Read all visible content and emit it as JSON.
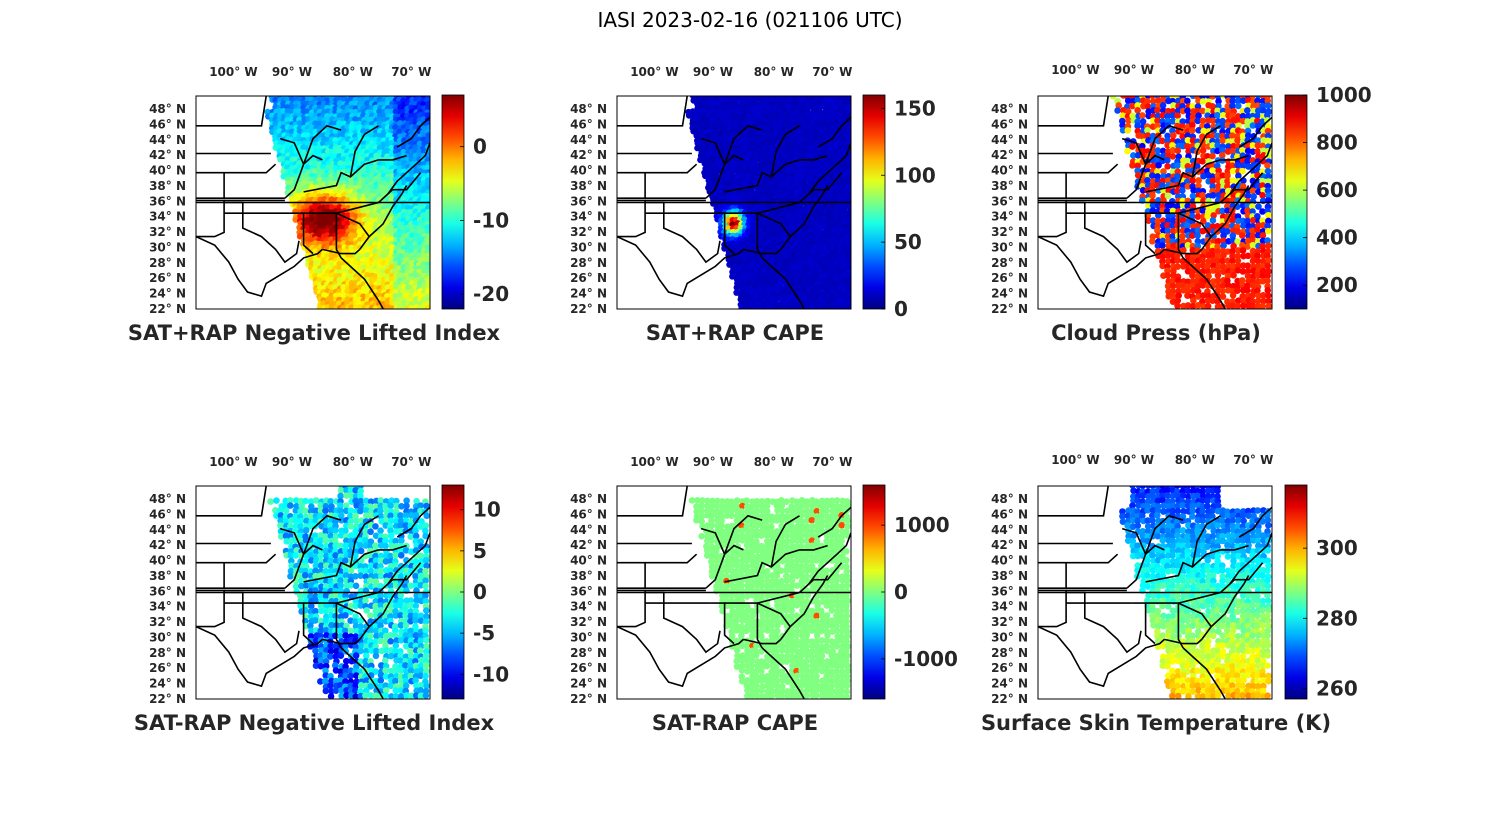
{
  "figure": {
    "title": "IASI 2023-02-16 (021106 UTC)"
  },
  "lat_labels": [
    "48° N",
    "46° N",
    "44° N",
    "42° N",
    "40° N",
    "38° N",
    "36° N",
    "34° N",
    "32° N",
    "30° N",
    "28° N",
    "26° N",
    "24° N",
    "22° N"
  ],
  "lon_labels": [
    "100° W",
    "90° W",
    "80° W",
    "70° W"
  ],
  "colormap": "jet",
  "panels": [
    {
      "title": "SAT+RAP Negative Lifted Index",
      "colorbar_ticks": [
        "0",
        "-10",
        "-20"
      ],
      "colorbar_range": [
        -22,
        7
      ],
      "colorbar_tick_values": [
        0,
        -10,
        -20
      ]
    },
    {
      "title": "SAT+RAP CAPE",
      "colorbar_ticks": [
        "150",
        "100",
        "50",
        "0"
      ],
      "colorbar_range": [
        0,
        160
      ],
      "colorbar_tick_values": [
        150,
        100,
        50,
        0
      ]
    },
    {
      "title": "Cloud Press (hPa)",
      "colorbar_ticks": [
        "1000",
        "800",
        "600",
        "400",
        "200"
      ],
      "colorbar_range": [
        100,
        1000
      ],
      "colorbar_tick_values": [
        1000,
        800,
        600,
        400,
        200
      ]
    },
    {
      "title": "SAT-RAP Negative Lifted Index",
      "colorbar_ticks": [
        "10",
        "5",
        "0",
        "-5",
        "-10"
      ],
      "colorbar_range": [
        -13,
        13
      ],
      "colorbar_tick_values": [
        10,
        5,
        0,
        -5,
        -10
      ]
    },
    {
      "title": "SAT-RAP CAPE",
      "colorbar_ticks": [
        "1000",
        "0",
        "-1000"
      ],
      "colorbar_range": [
        -1600,
        1600
      ],
      "colorbar_tick_values": [
        1000,
        0,
        -1000
      ]
    },
    {
      "title": "Surface Skin Temperature (K)",
      "colorbar_ticks": [
        "300",
        "280",
        "260"
      ],
      "colorbar_range": [
        257,
        318
      ],
      "colorbar_tick_values": [
        300,
        280,
        260
      ]
    }
  ]
}
